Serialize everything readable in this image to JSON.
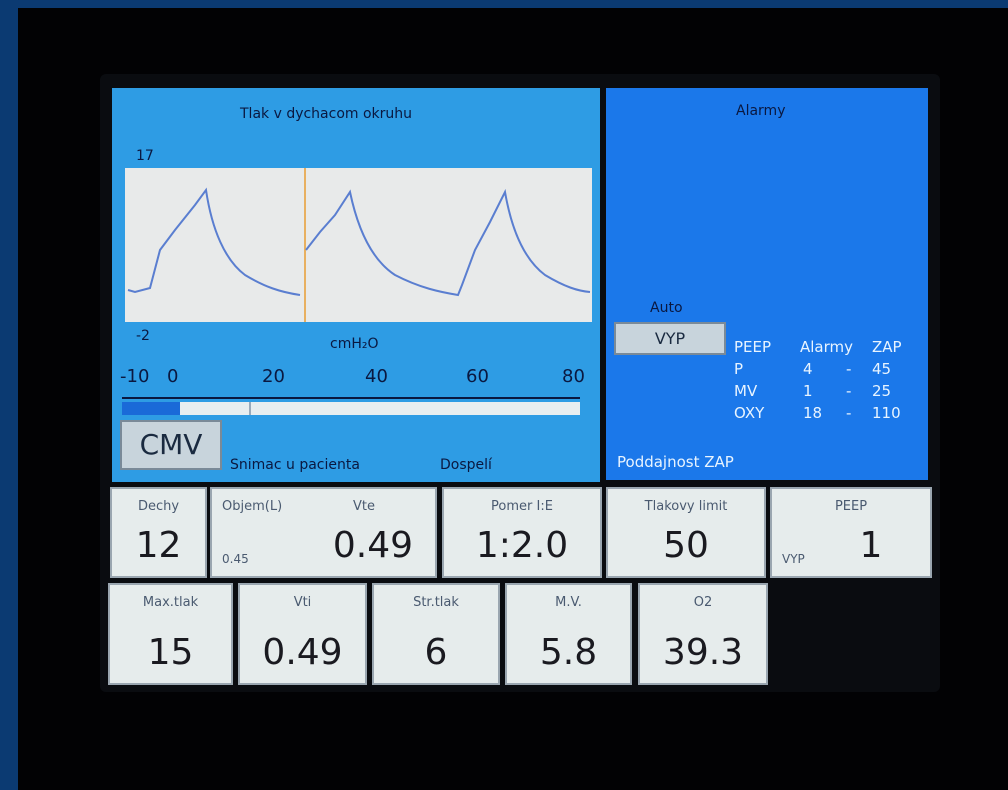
{
  "waveform": {
    "title": "Tlak v dychacom okruhu",
    "y_max": "17",
    "y_min": "-2",
    "unit": "cmH₂O"
  },
  "scale": [
    "-10",
    "0",
    "20",
    "40",
    "60",
    "80"
  ],
  "mode": "CMV",
  "sensor": "Snimac u pacienta",
  "patient": "Dospelí",
  "alarms": {
    "title": "Alarmy",
    "auto": "Auto",
    "button": "VYP",
    "header": [
      "PEEP",
      "Alarmy",
      "ZAP"
    ],
    "rows": [
      [
        "P",
        "4",
        "-",
        "45"
      ],
      [
        "MV",
        "1",
        "-",
        "25"
      ],
      [
        "OXY",
        "18",
        "-",
        "110"
      ]
    ],
    "footer": "Poddajnost ZAP"
  },
  "tiles": [
    {
      "label": "Dechy",
      "value": "12"
    },
    {
      "label": "Objem(L)",
      "label2": "Vte",
      "value": "0.49",
      "sub": "0.45"
    },
    {
      "label": "Pomer I:E",
      "value": "1:2.0"
    },
    {
      "label": "Tlakovy limit",
      "value": "50"
    },
    {
      "label": "PEEP",
      "value": "1",
      "sub": "VYP"
    },
    {
      "label": "Max.tlak",
      "value": "15"
    },
    {
      "label": "Vti",
      "value": "0.49"
    },
    {
      "label": "Str.tlak",
      "value": "6"
    },
    {
      "label": "M.V.",
      "value": "5.8"
    },
    {
      "label": "O2",
      "value": "39.3"
    }
  ]
}
